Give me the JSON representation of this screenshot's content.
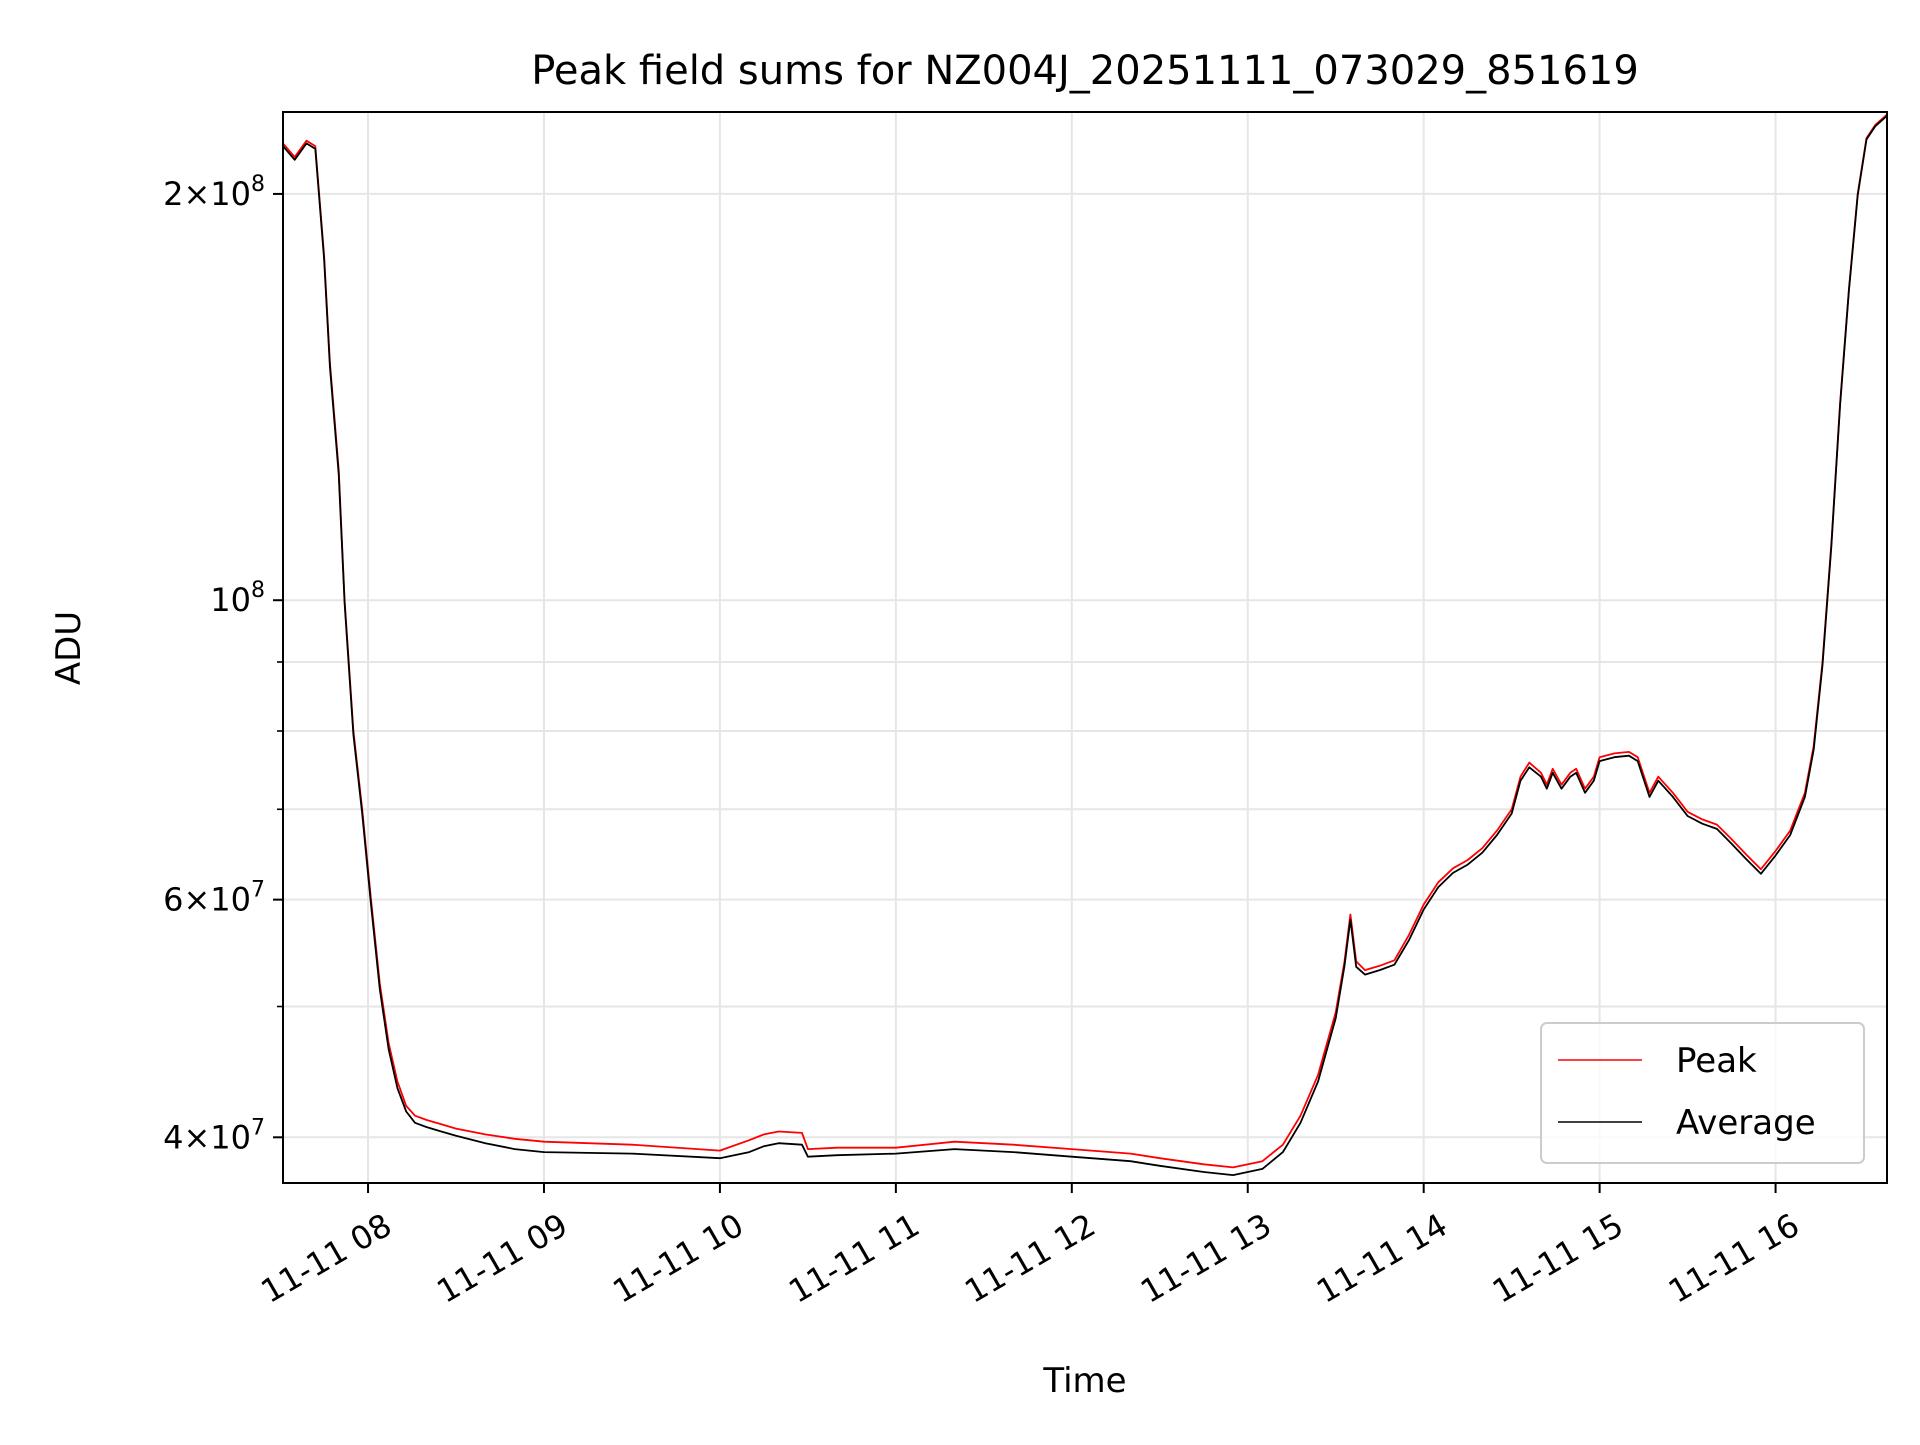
{
  "chart_data": {
    "type": "line",
    "title": "Peak field sums for NZ004J_20251111_073029_851619",
    "xlabel": "Time",
    "ylabel": "ADU",
    "yscale": "log",
    "xlim": [
      "2025-11-11 07:31",
      "2025-11-11 16:38"
    ],
    "ylim": [
      37000000,
      230000000
    ],
    "grid": true,
    "legend_position": "lower-right",
    "x_ticks": [
      {
        "value": "2025-11-11 08:00",
        "label": "11-11 08"
      },
      {
        "value": "2025-11-11 09:00",
        "label": "11-11 09"
      },
      {
        "value": "2025-11-11 10:00",
        "label": "11-11 10"
      },
      {
        "value": "2025-11-11 11:00",
        "label": "11-11 11"
      },
      {
        "value": "2025-11-11 12:00",
        "label": "11-11 12"
      },
      {
        "value": "2025-11-11 13:00",
        "label": "11-11 13"
      },
      {
        "value": "2025-11-11 14:00",
        "label": "11-11 14"
      },
      {
        "value": "2025-11-11 15:00",
        "label": "11-11 15"
      },
      {
        "value": "2025-11-11 16:00",
        "label": "11-11 16"
      }
    ],
    "y_major_ticks": [
      {
        "value": 40000000,
        "mantissa": "4",
        "exponent": "7"
      },
      {
        "value": 60000000,
        "mantissa": "6",
        "exponent": "7"
      },
      {
        "value": 100000000,
        "mantissa": "",
        "exponent": "8"
      },
      {
        "value": 200000000,
        "mantissa": "2",
        "exponent": "8"
      }
    ],
    "y_minor_ticks": [
      50000000,
      70000000,
      80000000,
      90000000
    ],
    "tick_base": "10",
    "tick_times": "×",
    "series": [
      {
        "name": "Peak",
        "color": "#ff0000",
        "x": [
          "2025-11-11 07:31",
          "2025-11-11 07:35",
          "2025-11-11 07:39",
          "2025-11-11 07:42",
          "2025-11-11 07:45",
          "2025-11-11 07:47",
          "2025-11-11 07:50",
          "2025-11-11 07:52",
          "2025-11-11 07:55",
          "2025-11-11 07:58",
          "2025-11-11 08:01",
          "2025-11-11 08:04",
          "2025-11-11 08:07",
          "2025-11-11 08:10",
          "2025-11-11 08:13",
          "2025-11-11 08:16",
          "2025-11-11 08:20",
          "2025-11-11 08:25",
          "2025-11-11 08:30",
          "2025-11-11 08:40",
          "2025-11-11 08:50",
          "2025-11-11 09:00",
          "2025-11-11 09:30",
          "2025-11-11 10:00",
          "2025-11-11 10:10",
          "2025-11-11 10:15",
          "2025-11-11 10:20",
          "2025-11-11 10:28",
          "2025-11-11 10:30",
          "2025-11-11 10:40",
          "2025-11-11 11:00",
          "2025-11-11 11:20",
          "2025-11-11 11:40",
          "2025-11-11 12:00",
          "2025-11-11 12:20",
          "2025-11-11 12:30",
          "2025-11-11 12:45",
          "2025-11-11 12:55",
          "2025-11-11 13:05",
          "2025-11-11 13:12",
          "2025-11-11 13:18",
          "2025-11-11 13:24",
          "2025-11-11 13:30",
          "2025-11-11 13:33",
          "2025-11-11 13:35",
          "2025-11-11 13:37",
          "2025-11-11 13:40",
          "2025-11-11 13:45",
          "2025-11-11 13:50",
          "2025-11-11 13:55",
          "2025-11-11 14:00",
          "2025-11-11 14:05",
          "2025-11-11 14:10",
          "2025-11-11 14:15",
          "2025-11-11 14:20",
          "2025-11-11 14:25",
          "2025-11-11 14:30",
          "2025-11-11 14:33",
          "2025-11-11 14:36",
          "2025-11-11 14:40",
          "2025-11-11 14:42",
          "2025-11-11 14:44",
          "2025-11-11 14:47",
          "2025-11-11 14:50",
          "2025-11-11 14:52",
          "2025-11-11 14:55",
          "2025-11-11 14:58",
          "2025-11-11 15:00",
          "2025-11-11 15:05",
          "2025-11-11 15:10",
          "2025-11-11 15:13",
          "2025-11-11 15:17",
          "2025-11-11 15:20",
          "2025-11-11 15:25",
          "2025-11-11 15:30",
          "2025-11-11 15:35",
          "2025-11-11 15:40",
          "2025-11-11 15:45",
          "2025-11-11 15:50",
          "2025-11-11 15:55",
          "2025-11-11 16:00",
          "2025-11-11 16:05",
          "2025-11-11 16:10",
          "2025-11-11 16:13",
          "2025-11-11 16:16",
          "2025-11-11 16:19",
          "2025-11-11 16:22",
          "2025-11-11 16:25",
          "2025-11-11 16:28",
          "2025-11-11 16:31",
          "2025-11-11 16:34",
          "2025-11-11 16:38"
        ],
        "y": [
          218000000,
          213000000,
          219000000,
          217000000,
          180000000,
          150000000,
          125000000,
          100000000,
          80000000,
          70000000,
          60000000,
          52000000,
          47000000,
          44000000,
          42200000,
          41500000,
          41200000,
          40900000,
          40600000,
          40200000,
          39900000,
          39700000,
          39500000,
          39100000,
          39800000,
          40200000,
          40400000,
          40300000,
          39200000,
          39300000,
          39300000,
          39700000,
          39500000,
          39200000,
          38900000,
          38600000,
          38200000,
          38000000,
          38400000,
          39500000,
          41500000,
          44500000,
          49500000,
          54000000,
          58500000,
          54000000,
          53200000,
          53600000,
          54100000,
          56500000,
          59500000,
          61800000,
          63300000,
          64200000,
          65500000,
          67500000,
          70000000,
          74000000,
          75800000,
          74500000,
          73000000,
          75000000,
          73000000,
          74500000,
          75000000,
          72500000,
          74000000,
          76500000,
          77000000,
          77200000,
          76500000,
          72000000,
          74000000,
          72000000,
          69700000,
          68800000,
          68200000,
          66500000,
          64800000,
          63200000,
          65200000,
          67500000,
          72000000,
          78000000,
          90000000,
          110000000,
          140000000,
          170000000,
          200000000,
          220000000,
          225000000,
          229000000
        ]
      },
      {
        "name": "Average",
        "color": "#000000",
        "x": [
          "2025-11-11 07:31",
          "2025-11-11 07:35",
          "2025-11-11 07:39",
          "2025-11-11 07:42",
          "2025-11-11 07:45",
          "2025-11-11 07:47",
          "2025-11-11 07:50",
          "2025-11-11 07:52",
          "2025-11-11 07:55",
          "2025-11-11 07:58",
          "2025-11-11 08:01",
          "2025-11-11 08:04",
          "2025-11-11 08:07",
          "2025-11-11 08:10",
          "2025-11-11 08:13",
          "2025-11-11 08:16",
          "2025-11-11 08:20",
          "2025-11-11 08:25",
          "2025-11-11 08:30",
          "2025-11-11 08:40",
          "2025-11-11 08:50",
          "2025-11-11 09:00",
          "2025-11-11 09:30",
          "2025-11-11 10:00",
          "2025-11-11 10:10",
          "2025-11-11 10:15",
          "2025-11-11 10:20",
          "2025-11-11 10:28",
          "2025-11-11 10:30",
          "2025-11-11 10:40",
          "2025-11-11 11:00",
          "2025-11-11 11:20",
          "2025-11-11 11:40",
          "2025-11-11 12:00",
          "2025-11-11 12:20",
          "2025-11-11 12:30",
          "2025-11-11 12:45",
          "2025-11-11 12:55",
          "2025-11-11 13:05",
          "2025-11-11 13:12",
          "2025-11-11 13:18",
          "2025-11-11 13:24",
          "2025-11-11 13:30",
          "2025-11-11 13:33",
          "2025-11-11 13:35",
          "2025-11-11 13:37",
          "2025-11-11 13:40",
          "2025-11-11 13:45",
          "2025-11-11 13:50",
          "2025-11-11 13:55",
          "2025-11-11 14:00",
          "2025-11-11 14:05",
          "2025-11-11 14:10",
          "2025-11-11 14:15",
          "2025-11-11 14:20",
          "2025-11-11 14:25",
          "2025-11-11 14:30",
          "2025-11-11 14:33",
          "2025-11-11 14:36",
          "2025-11-11 14:40",
          "2025-11-11 14:42",
          "2025-11-11 14:44",
          "2025-11-11 14:47",
          "2025-11-11 14:50",
          "2025-11-11 14:52",
          "2025-11-11 14:55",
          "2025-11-11 14:58",
          "2025-11-11 15:00",
          "2025-11-11 15:05",
          "2025-11-11 15:10",
          "2025-11-11 15:13",
          "2025-11-11 15:17",
          "2025-11-11 15:20",
          "2025-11-11 15:25",
          "2025-11-11 15:30",
          "2025-11-11 15:35",
          "2025-11-11 15:40",
          "2025-11-11 15:45",
          "2025-11-11 15:50",
          "2025-11-11 15:55",
          "2025-11-11 16:00",
          "2025-11-11 16:05",
          "2025-11-11 16:10",
          "2025-11-11 16:13",
          "2025-11-11 16:16",
          "2025-11-11 16:19",
          "2025-11-11 16:22",
          "2025-11-11 16:25",
          "2025-11-11 16:28",
          "2025-11-11 16:31",
          "2025-11-11 16:34",
          "2025-11-11 16:38"
        ],
        "y": [
          217000000,
          212000000,
          218000000,
          216000000,
          179000000,
          149000000,
          124000000,
          99500000,
          79500000,
          69500000,
          59500000,
          51500000,
          46500000,
          43500000,
          41800000,
          41000000,
          40700000,
          40400000,
          40100000,
          39600000,
          39200000,
          39000000,
          38900000,
          38600000,
          39000000,
          39400000,
          39600000,
          39500000,
          38700000,
          38800000,
          38900000,
          39200000,
          39000000,
          38700000,
          38400000,
          38100000,
          37700000,
          37500000,
          37900000,
          39000000,
          41000000,
          44000000,
          49000000,
          53600000,
          58000000,
          53500000,
          52800000,
          53200000,
          53700000,
          56000000,
          59000000,
          61300000,
          62800000,
          63700000,
          65000000,
          67000000,
          69500000,
          73500000,
          75200000,
          74000000,
          72500000,
          74500000,
          72500000,
          74000000,
          74500000,
          72000000,
          73500000,
          76000000,
          76500000,
          76700000,
          76000000,
          71500000,
          73500000,
          71500000,
          69200000,
          68300000,
          67700000,
          66000000,
          64300000,
          62700000,
          64700000,
          67000000,
          71500000,
          77500000,
          89500000,
          109500000,
          139500000,
          169500000,
          199500000,
          219500000,
          224500000,
          228500000
        ]
      }
    ]
  }
}
